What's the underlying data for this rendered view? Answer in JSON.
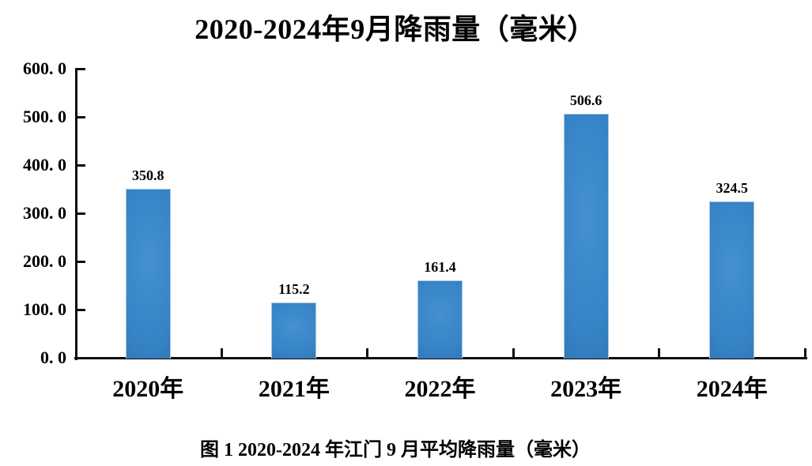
{
  "figure": {
    "caption": "图 1 2020-2024 年江门 9 月平均降雨量（毫米）",
    "background_color": "#ffffff"
  },
  "chart_data": {
    "type": "bar",
    "title": "2020-2024年9月降雨量（毫米）",
    "categories": [
      "2020年",
      "2021年",
      "2022年",
      "2023年",
      "2024年"
    ],
    "values": [
      350.8,
      115.2,
      161.4,
      506.6,
      324.5
    ],
    "value_labels": [
      "350.8",
      "115.2",
      "161.4",
      "506.6",
      "324.5"
    ],
    "xlabel": "",
    "ylabel": "",
    "ylim": [
      0,
      600
    ],
    "y_ticks": [
      0,
      100,
      200,
      300,
      400,
      500,
      600
    ],
    "y_tick_labels": [
      "0. 0",
      "100. 0",
      "200. 0",
      "300. 0",
      "400. 0",
      "500. 0",
      "600. 0"
    ],
    "grid": false,
    "legend": null,
    "colors": {
      "bar_fill_center": "#4490d0",
      "bar_fill_mid": "#3684c6",
      "bar_fill_edge": "#2b6fa9",
      "bar_border": "#a6c8e2",
      "axis": "#0d0d0d",
      "text": "#000000"
    }
  }
}
